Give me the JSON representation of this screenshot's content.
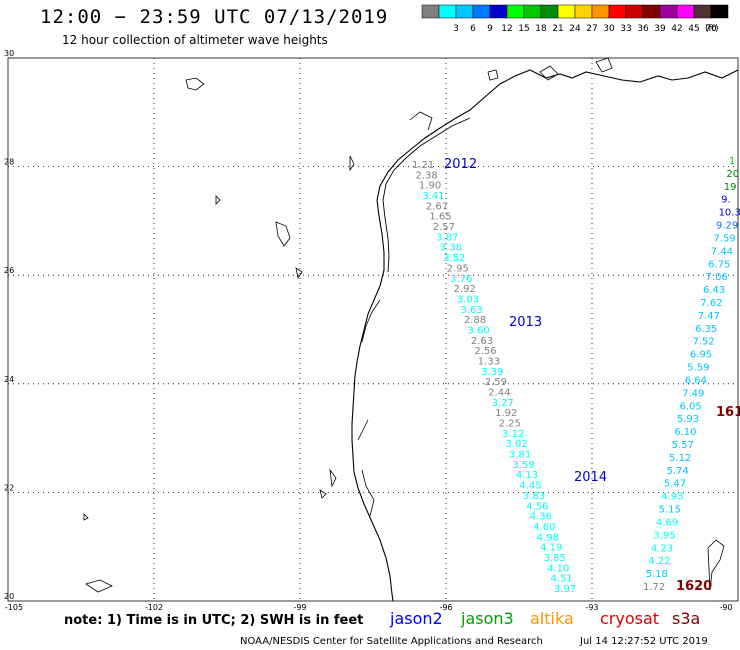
{
  "header": {
    "title": "12:00 − 23:59 UTC 07/13/2019",
    "subtitle": "12 hour collection of altimeter wave heights"
  },
  "colorbar": {
    "unit": "(ft)",
    "bins": [
      {
        "color": "#808080",
        "label": ""
      },
      {
        "color": "#00ffff",
        "label": "3"
      },
      {
        "color": "#00c8ff",
        "label": "6"
      },
      {
        "color": "#0078ff",
        "label": "9"
      },
      {
        "color": "#0000cd",
        "label": "12"
      },
      {
        "color": "#00ff00",
        "label": "15"
      },
      {
        "color": "#00c800",
        "label": "18"
      },
      {
        "color": "#008c00",
        "label": "21"
      },
      {
        "color": "#ffff00",
        "label": "24"
      },
      {
        "color": "#ffd200",
        "label": "27"
      },
      {
        "color": "#ff9600",
        "label": "30"
      },
      {
        "color": "#ff0000",
        "label": "33"
      },
      {
        "color": "#c80000",
        "label": "36"
      },
      {
        "color": "#800000",
        "label": "39"
      },
      {
        "color": "#a000a0",
        "label": "42"
      },
      {
        "color": "#ff00ff",
        "label": "45"
      },
      {
        "color": "#503030",
        "label": "70"
      },
      {
        "color": "#000000",
        "label": ""
      }
    ]
  },
  "axes": {
    "lat_labels": [
      "30",
      "28",
      "26",
      "24",
      "22",
      "20"
    ],
    "lon_labels": [
      "-105",
      "-102",
      "-99",
      "-96",
      "-93",
      "-90"
    ]
  },
  "passes": [
    {
      "label": "2012",
      "color": "#0000cd"
    },
    {
      "label": "2013",
      "color": "#0000cd"
    },
    {
      "label": "2014",
      "color": "#0000cd"
    },
    {
      "label": "161",
      "color": "#800000"
    },
    {
      "label": "1620",
      "color": "#800000"
    }
  ],
  "tracks": {
    "west": [
      {
        "v": "1.21",
        "c": "#808080"
      },
      {
        "v": "2.38",
        "c": "#808080"
      },
      {
        "v": "1.90",
        "c": "#808080"
      },
      {
        "v": "3.41",
        "c": "#00ffff"
      },
      {
        "v": "2.67",
        "c": "#808080"
      },
      {
        "v": "1.65",
        "c": "#808080"
      },
      {
        "v": "2.57",
        "c": "#808080"
      },
      {
        "v": "3.87",
        "c": "#00ffff"
      },
      {
        "v": "3.38",
        "c": "#00ffff"
      },
      {
        "v": "3.52",
        "c": "#00ffff"
      },
      {
        "v": "2.95",
        "c": "#808080"
      },
      {
        "v": "3.76",
        "c": "#00ffff"
      },
      {
        "v": "2.92",
        "c": "#808080"
      },
      {
        "v": "3.03",
        "c": "#00ffff"
      },
      {
        "v": "3.63",
        "c": "#00ffff"
      },
      {
        "v": "2.88",
        "c": "#808080"
      },
      {
        "v": "3.60",
        "c": "#00ffff"
      },
      {
        "v": "2.63",
        "c": "#808080"
      },
      {
        "v": "2.56",
        "c": "#808080"
      },
      {
        "v": "1.33",
        "c": "#808080"
      },
      {
        "v": "3.39",
        "c": "#00ffff"
      },
      {
        "v": "2.59",
        "c": "#808080"
      },
      {
        "v": "2.44",
        "c": "#808080"
      },
      {
        "v": "3.27",
        "c": "#00ffff"
      },
      {
        "v": "1.92",
        "c": "#808080"
      },
      {
        "v": "2.25",
        "c": "#808080"
      },
      {
        "v": "3.12",
        "c": "#00ffff"
      },
      {
        "v": "3.02",
        "c": "#00ffff"
      },
      {
        "v": "3.81",
        "c": "#00ffff"
      },
      {
        "v": "3.59",
        "c": "#00ffff"
      },
      {
        "v": "4.13",
        "c": "#00ffff"
      },
      {
        "v": "4.45",
        "c": "#00ffff"
      },
      {
        "v": "3.83",
        "c": "#00ffff"
      },
      {
        "v": "4.56",
        "c": "#00ffff"
      },
      {
        "v": "4.36",
        "c": "#00ffff"
      },
      {
        "v": "4.60",
        "c": "#00ffff"
      },
      {
        "v": "4.98",
        "c": "#00ffff"
      },
      {
        "v": "4.19",
        "c": "#00ffff"
      },
      {
        "v": "3.85",
        "c": "#00ffff"
      },
      {
        "v": "4.10",
        "c": "#00ffff"
      },
      {
        "v": "4.51",
        "c": "#00ffff"
      },
      {
        "v": "3.97",
        "c": "#00ffff"
      }
    ],
    "east": [
      {
        "v": "1",
        "c": "#00c800"
      },
      {
        "v": "20",
        "c": "#008c00"
      },
      {
        "v": "19",
        "c": "#008c00"
      },
      {
        "v": "9.",
        "c": "#0000cd"
      },
      {
        "v": "10.3",
        "c": "#0000cd"
      },
      {
        "v": "9.29",
        "c": "#0078ff"
      },
      {
        "v": "7.59",
        "c": "#00c8ff"
      },
      {
        "v": "7.44",
        "c": "#00c8ff"
      },
      {
        "v": "6.75",
        "c": "#00c8ff"
      },
      {
        "v": "7.06",
        "c": "#00c8ff"
      },
      {
        "v": "6.43",
        "c": "#00c8ff"
      },
      {
        "v": "7.62",
        "c": "#00c8ff"
      },
      {
        "v": "7.47",
        "c": "#00c8ff"
      },
      {
        "v": "6.35",
        "c": "#00c8ff"
      },
      {
        "v": "7.52",
        "c": "#00c8ff"
      },
      {
        "v": "6.95",
        "c": "#00c8ff"
      },
      {
        "v": "5.59",
        "c": "#00c8ff"
      },
      {
        "v": "6.64",
        "c": "#00c8ff"
      },
      {
        "v": "7.49",
        "c": "#00c8ff"
      },
      {
        "v": "6.05",
        "c": "#00c8ff"
      },
      {
        "v": "5.93",
        "c": "#00c8ff"
      },
      {
        "v": "6.10",
        "c": "#00c8ff"
      },
      {
        "v": "5.57",
        "c": "#00c8ff"
      },
      {
        "v": "5.12",
        "c": "#00c8ff"
      },
      {
        "v": "5.74",
        "c": "#00c8ff"
      },
      {
        "v": "5.47",
        "c": "#00c8ff"
      },
      {
        "v": "4.93",
        "c": "#00ffff"
      },
      {
        "v": "5.15",
        "c": "#00c8ff"
      },
      {
        "v": "4.69",
        "c": "#00ffff"
      },
      {
        "v": "3.95",
        "c": "#00ffff"
      },
      {
        "v": "4.23",
        "c": "#00ffff"
      },
      {
        "v": "4.22",
        "c": "#00ffff"
      },
      {
        "v": "5.18",
        "c": "#00c8ff"
      },
      {
        "v": "1.72",
        "c": "#808080"
      }
    ]
  },
  "footer": {
    "note": "note:  1) Time is in UTC;  2) SWH is in feet",
    "missions": [
      {
        "name": "jason2",
        "color": "#0000ff"
      },
      {
        "name": "jason3",
        "color": "#00a000"
      },
      {
        "name": "altika",
        "color": "#ff9600"
      },
      {
        "name": "cryosat",
        "color": "#e00000"
      },
      {
        "name": "s3a",
        "color": "#800000"
      }
    ],
    "credit": "NOAA/NESDIS Center for Satellite Applications and Research",
    "timestamp": "Jul 14 12:27:52 UTC 2019"
  }
}
